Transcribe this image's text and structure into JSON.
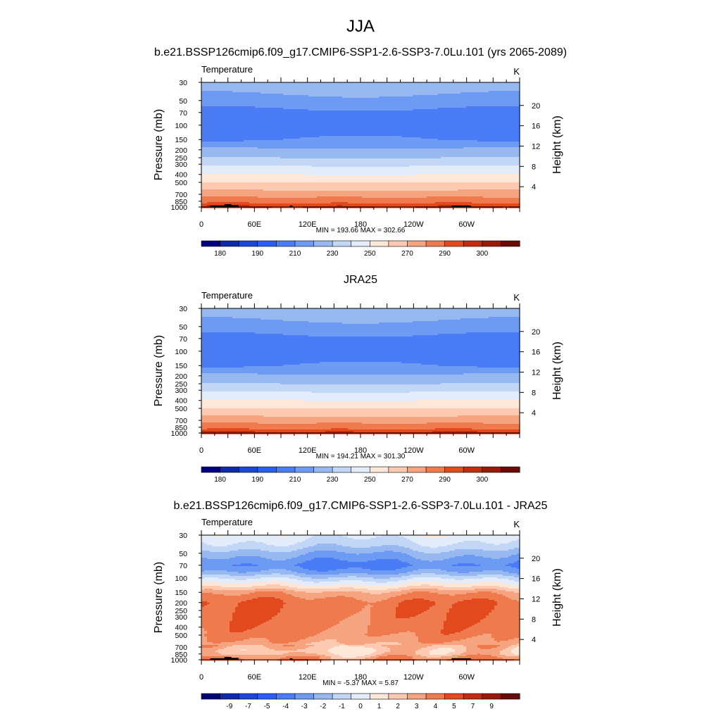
{
  "figure": {
    "season": "JJA",
    "title_model": "b.e21.BSSP126cmip6.f09_g17.CMIP6-SSP1-2.6-SSP3-7.0Lu.101 (yrs 2065-2089)",
    "title_obs": "JRA25",
    "title_diff": "b.e21.BSSP126cmip6.f09_g17.CMIP6-SSP1-2.6-SSP3-7.0Lu.101 - JRA25"
  },
  "colors": {
    "palette": [
      "#00007f",
      "#0f2aa8",
      "#1b46d6",
      "#2c5ef5",
      "#4a7df5",
      "#6d9af2",
      "#98b8f2",
      "#c2d6f5",
      "#e2ecfa",
      "#fde7d9",
      "#fbcab0",
      "#f6a37f",
      "#ef7a4d",
      "#e24a1e",
      "#c42a0e",
      "#9a1a0a",
      "#6a0a04"
    ],
    "terrain": "#000000"
  },
  "chart_data": [
    {
      "type": "heatmap",
      "name": "model",
      "field_label": "Temperature",
      "units": "K",
      "ylabel": "Pressure (mb)",
      "ylabel_right": "Height (km)",
      "y_ticks": [
        "30",
        "50",
        "70",
        "100",
        "150",
        "200",
        "250",
        "300",
        "400",
        "500",
        "700",
        "850",
        "1000"
      ],
      "y_tick_values": [
        30,
        50,
        70,
        100,
        150,
        200,
        250,
        300,
        400,
        500,
        700,
        850,
        1000
      ],
      "y_scale": "log",
      "y_right_ticks": [
        "20",
        "16",
        "12",
        "8",
        "4"
      ],
      "y_right_tick_values": [
        20,
        16,
        12,
        8,
        4
      ],
      "x_ticks": [
        "0",
        "60E",
        "120E",
        "180",
        "120W",
        "60W"
      ],
      "x_tick_values": [
        0,
        60,
        120,
        180,
        240,
        300
      ],
      "xlim": [
        0,
        360
      ],
      "stats_text": "MIN = 193.66  MAX = 302.66",
      "min": 193.66,
      "max": 302.66,
      "colorbar_labels": [
        "180",
        "190",
        "210",
        "230",
        "250",
        "270",
        "290",
        "300"
      ],
      "colorbar_levels": [
        180,
        185,
        190,
        200,
        210,
        220,
        230,
        240,
        250,
        260,
        270,
        280,
        290,
        295,
        300,
        305
      ],
      "profile_p": [
        30,
        40,
        50,
        60,
        70,
        85,
        100,
        125,
        150,
        175,
        200,
        250,
        300,
        400,
        500,
        600,
        700,
        775,
        850,
        925,
        1000
      ],
      "profile_t": [
        227,
        221,
        216,
        211,
        207,
        205,
        206,
        207,
        210,
        216,
        222,
        230,
        238,
        250,
        260,
        268,
        276,
        281,
        286,
        292,
        296
      ],
      "terrain": true
    },
    {
      "type": "heatmap",
      "name": "obs",
      "field_label": "Temperature",
      "units": "K",
      "ylabel": "Pressure (mb)",
      "ylabel_right": "Height (km)",
      "y_ticks": [
        "30",
        "50",
        "70",
        "100",
        "150",
        "200",
        "250",
        "300",
        "400",
        "500",
        "700",
        "850",
        "1000"
      ],
      "y_tick_values": [
        30,
        50,
        70,
        100,
        150,
        200,
        250,
        300,
        400,
        500,
        700,
        850,
        1000
      ],
      "y_scale": "log",
      "y_right_ticks": [
        "20",
        "16",
        "12",
        "8",
        "4"
      ],
      "y_right_tick_values": [
        20,
        16,
        12,
        8,
        4
      ],
      "x_ticks": [
        "0",
        "60E",
        "120E",
        "180",
        "120W",
        "60W"
      ],
      "x_tick_values": [
        0,
        60,
        120,
        180,
        240,
        300
      ],
      "xlim": [
        0,
        360
      ],
      "stats_text": "MIN = 194.21  MAX = 301.30",
      "min": 194.21,
      "max": 301.3,
      "colorbar_labels": [
        "180",
        "190",
        "210",
        "230",
        "250",
        "270",
        "290",
        "300"
      ],
      "colorbar_levels": [
        180,
        185,
        190,
        200,
        210,
        220,
        230,
        240,
        250,
        260,
        270,
        280,
        290,
        295,
        300,
        305
      ],
      "profile_p": [
        30,
        40,
        50,
        60,
        70,
        85,
        100,
        125,
        150,
        175,
        200,
        250,
        300,
        400,
        500,
        600,
        700,
        775,
        850,
        925,
        1000
      ],
      "profile_t": [
        227,
        221,
        216,
        211,
        207,
        205,
        206,
        207,
        210,
        216,
        222,
        230,
        238,
        250,
        260,
        268,
        276,
        281,
        286,
        292,
        297
      ],
      "terrain": false
    },
    {
      "type": "heatmap",
      "name": "difference",
      "field_label": "Temperature",
      "units": "K",
      "ylabel": "Pressure (mb)",
      "ylabel_right": "Height (km)",
      "y_ticks": [
        "30",
        "50",
        "70",
        "100",
        "150",
        "200",
        "250",
        "300",
        "400",
        "500",
        "700",
        "850",
        "1000"
      ],
      "y_tick_values": [
        30,
        50,
        70,
        100,
        150,
        200,
        250,
        300,
        400,
        500,
        700,
        850,
        1000
      ],
      "y_scale": "log",
      "y_right_ticks": [
        "20",
        "16",
        "12",
        "8",
        "4"
      ],
      "y_right_tick_values": [
        20,
        16,
        12,
        8,
        4
      ],
      "x_ticks": [
        "0",
        "60E",
        "120E",
        "180",
        "120W",
        "60W"
      ],
      "x_tick_values": [
        0,
        60,
        120,
        180,
        240,
        300
      ],
      "xlim": [
        0,
        360
      ],
      "stats_text": "MIN =  -5.37  MAX =   5.87",
      "min": -5.37,
      "max": 5.87,
      "colorbar_labels": [
        "-9",
        "-7",
        "-5",
        "-4",
        "-3",
        "-2",
        "-1",
        "0",
        "1",
        "2",
        "3",
        "4",
        "5",
        "7",
        "9"
      ],
      "colorbar_levels": [
        -11,
        -9,
        -7,
        -5,
        -4,
        -3,
        -2,
        -1,
        0,
        1,
        2,
        3,
        4,
        5,
        7,
        9,
        11
      ],
      "profile_p": [
        30,
        40,
        50,
        60,
        70,
        85,
        100,
        125,
        150,
        175,
        200,
        250,
        300,
        400,
        500,
        600,
        700,
        775,
        850,
        925,
        1000
      ],
      "profile_t": [
        -0.5,
        -1.5,
        -2.8,
        -3.6,
        -4.3,
        -3.2,
        -1.5,
        0.5,
        2.5,
        3.3,
        3.8,
        3.8,
        3.7,
        3.4,
        3.1,
        2.6,
        1.8,
        1.3,
        1.6,
        2.6,
        3.0
      ],
      "terrain": true
    }
  ]
}
